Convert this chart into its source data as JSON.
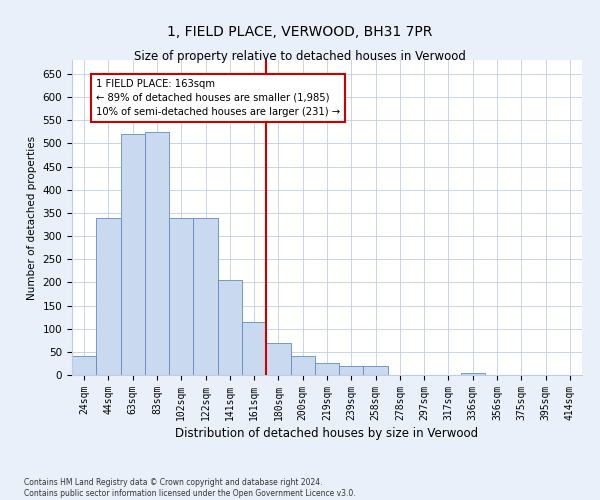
{
  "title": "1, FIELD PLACE, VERWOOD, BH31 7PR",
  "subtitle": "Size of property relative to detached houses in Verwood",
  "xlabel": "Distribution of detached houses by size in Verwood",
  "ylabel": "Number of detached properties",
  "categories": [
    "24sqm",
    "44sqm",
    "63sqm",
    "83sqm",
    "102sqm",
    "122sqm",
    "141sqm",
    "161sqm",
    "180sqm",
    "200sqm",
    "219sqm",
    "239sqm",
    "258sqm",
    "278sqm",
    "297sqm",
    "317sqm",
    "336sqm",
    "356sqm",
    "375sqm",
    "395sqm",
    "414sqm"
  ],
  "values": [
    40,
    340,
    520,
    525,
    340,
    340,
    205,
    115,
    70,
    40,
    25,
    20,
    20,
    0,
    0,
    0,
    5,
    0,
    0,
    0,
    0
  ],
  "bar_color": "#c8d9f0",
  "bar_edge_color": "#5b8ec4",
  "vline_color": "#cc0000",
  "vline_x": 7.5,
  "annotation_text": "1 FIELD PLACE: 163sqm\n← 89% of detached houses are smaller (1,985)\n10% of semi-detached houses are larger (231) →",
  "annotation_box_color": "#cc0000",
  "ylim": [
    0,
    680
  ],
  "yticks": [
    0,
    50,
    100,
    150,
    200,
    250,
    300,
    350,
    400,
    450,
    500,
    550,
    600,
    650
  ],
  "footer_line1": "Contains HM Land Registry data © Crown copyright and database right 2024.",
  "footer_line2": "Contains public sector information licensed under the Open Government Licence v3.0.",
  "bg_color": "#eaf0fa",
  "plot_bg_color": "#ffffff",
  "grid_color": "#c0cde0"
}
